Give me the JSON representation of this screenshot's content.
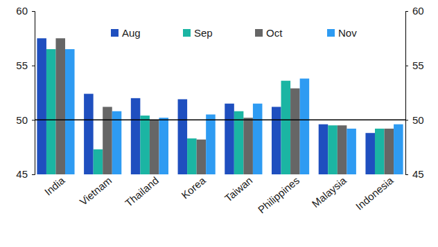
{
  "chart_data": {
    "type": "bar",
    "categories": [
      "India",
      "Vietnam",
      "Thailand",
      "Korea",
      "Taiwan",
      "Philippines",
      "Malaysia",
      "Indonesia"
    ],
    "series": [
      {
        "name": "Aug",
        "color": "#1f4fbf",
        "values": [
          57.5,
          52.4,
          52.0,
          51.9,
          51.5,
          51.2,
          49.6,
          48.8
        ]
      },
      {
        "name": "Sep",
        "color": "#1bb5a3",
        "values": [
          56.5,
          47.3,
          50.4,
          48.3,
          50.8,
          53.6,
          49.5,
          49.2
        ]
      },
      {
        "name": "Oct",
        "color": "#666666",
        "values": [
          57.5,
          51.2,
          50.0,
          48.2,
          50.2,
          52.9,
          49.5,
          49.2
        ]
      },
      {
        "name": "Nov",
        "color": "#2e9bf2",
        "values": [
          56.5,
          50.8,
          50.2,
          50.5,
          51.5,
          53.8,
          49.2,
          49.6
        ]
      }
    ],
    "ylim": [
      45,
      60
    ],
    "yticks": [
      45,
      50,
      55,
      60
    ],
    "y2lim": [
      45,
      60
    ],
    "y2ticks": [
      45,
      50,
      55,
      60
    ],
    "hline": 50,
    "grid": false,
    "legend": "top"
  }
}
